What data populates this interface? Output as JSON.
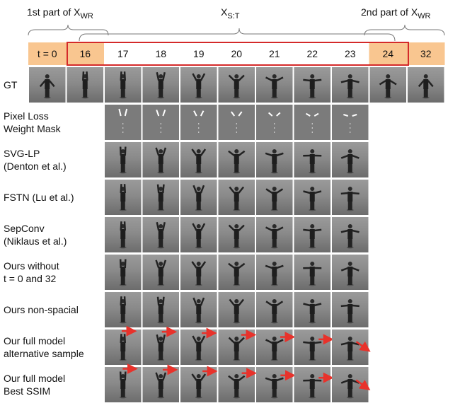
{
  "header": {
    "left": {
      "text": "1st part of X",
      "sub": "WR"
    },
    "middle": {
      "text": "X",
      "sub": "S:T"
    },
    "right": {
      "text": "2nd part of X",
      "sub": "WR"
    }
  },
  "frames": [
    "t = 0",
    "16",
    "17",
    "18",
    "19",
    "20",
    "21",
    "22",
    "23",
    "24",
    "32"
  ],
  "rows": [
    {
      "label": [
        "GT"
      ]
    },
    {
      "label": [
        "Pixel Loss",
        "Weight Mask"
      ]
    },
    {
      "label": [
        "SVG-LP",
        "(Denton et al.)"
      ]
    },
    {
      "label": [
        "FSTN (Lu et al.)"
      ]
    },
    {
      "label": [
        "SepConv",
        "(Niklaus et al.)"
      ]
    },
    {
      "label": [
        "Ours without",
        " t = 0 and 32"
      ]
    },
    {
      "label": [
        "Ours non-spacial"
      ]
    },
    {
      "label": [
        "Our full model",
        "alternative sample"
      ]
    },
    {
      "label": [
        "Our full model",
        "Best SSIM"
      ]
    }
  ]
}
